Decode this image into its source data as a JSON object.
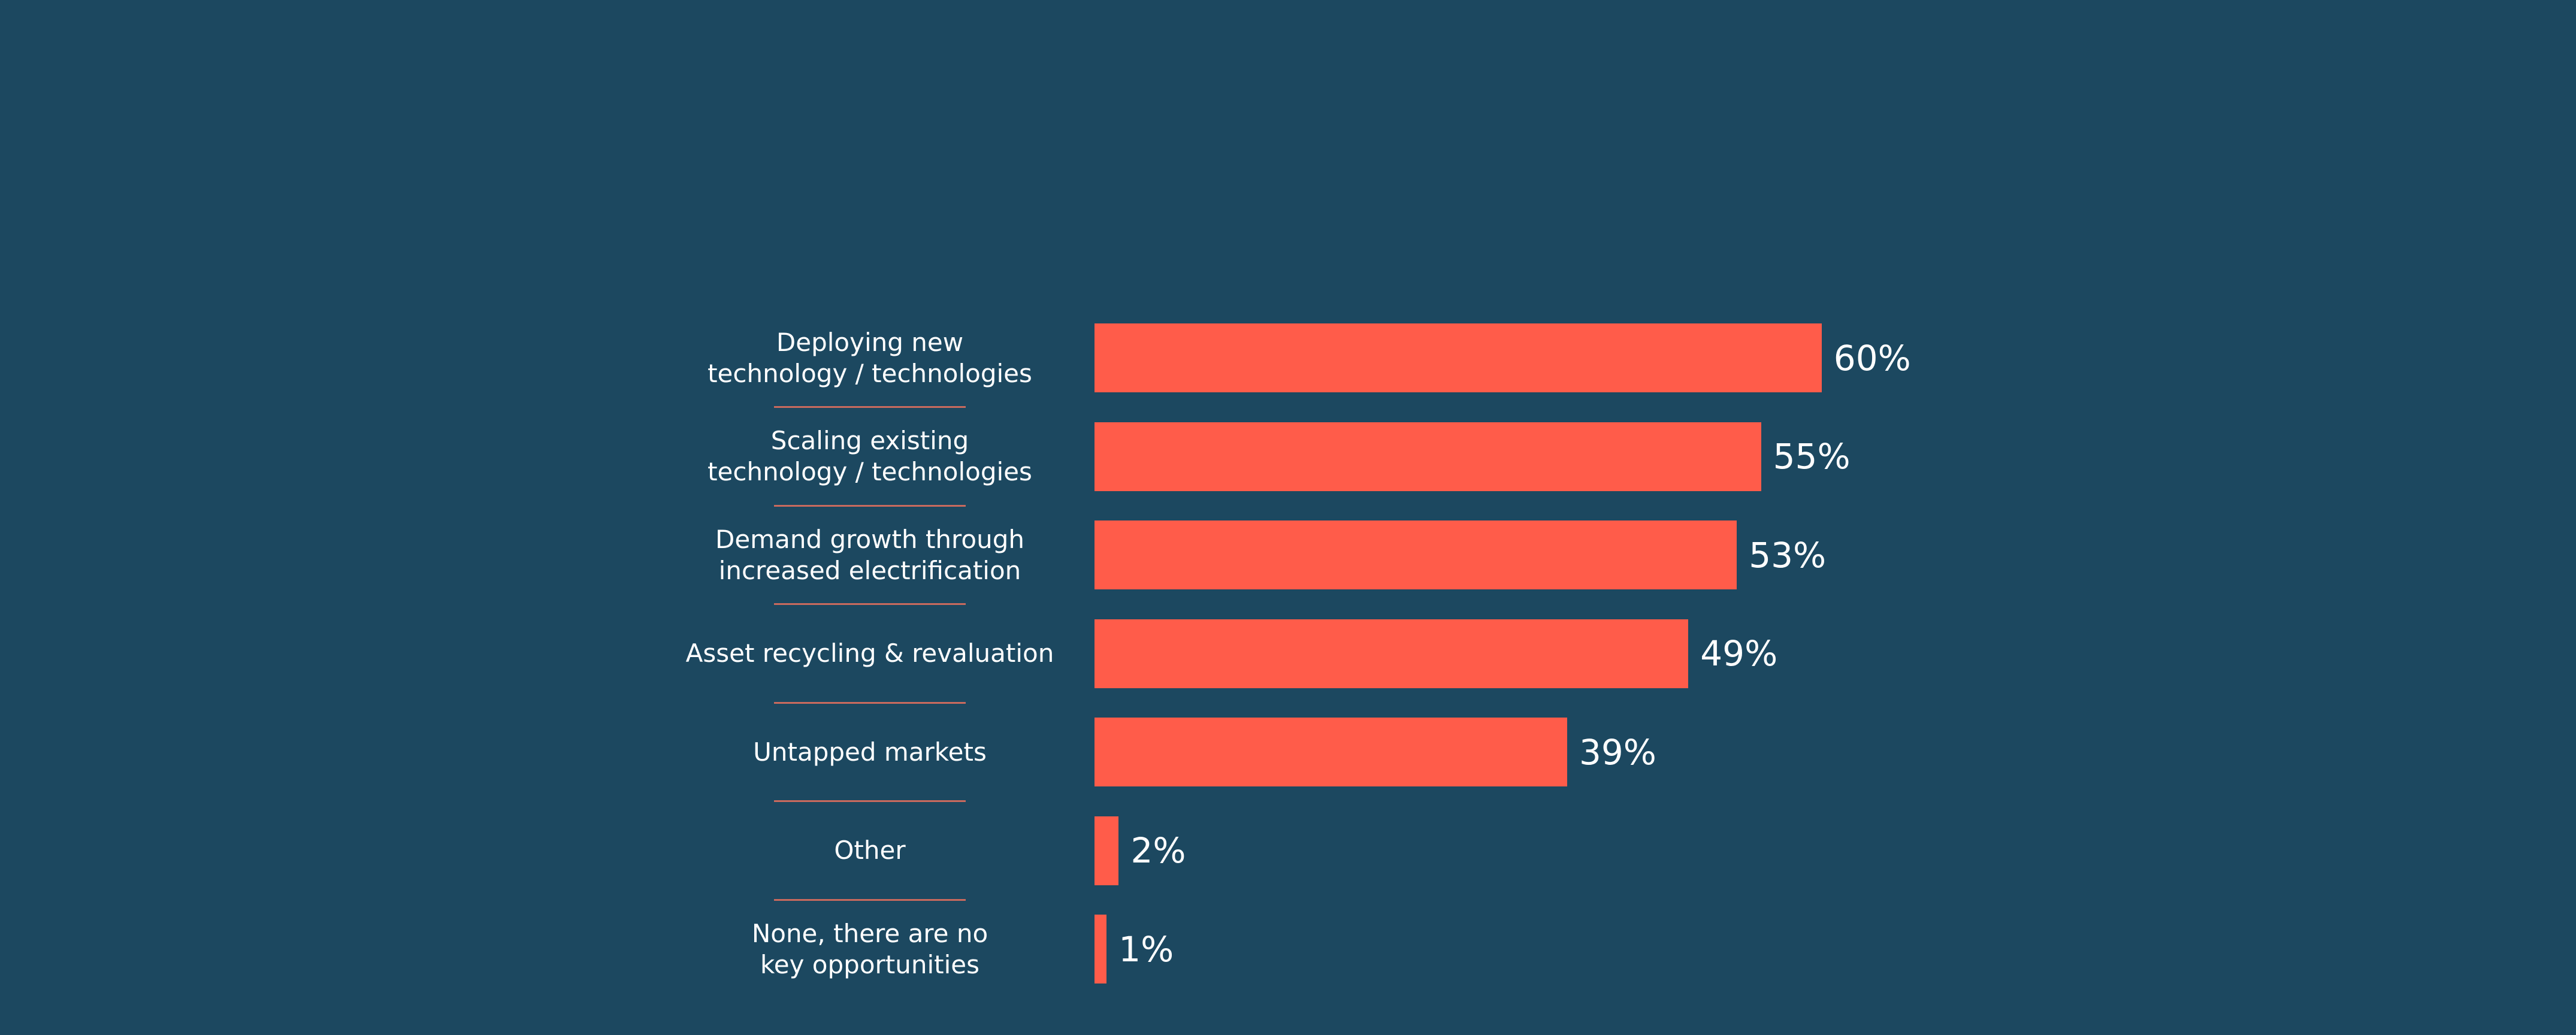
{
  "chart_data": {
    "type": "bar",
    "orientation": "horizontal",
    "categories": [
      "Deploying new\ntechnology / technologies",
      "Scaling existing\ntechnology / technologies",
      "Demand growth through\nincreased electrification",
      "Asset recycling & revaluation",
      "Untapped markets",
      "Other",
      "None, there are no\nkey opportunities"
    ],
    "values": [
      60,
      55,
      53,
      49,
      39,
      2,
      1
    ],
    "value_labels": [
      "60%",
      "55%",
      "53%",
      "49%",
      "39%",
      "2%",
      "1%"
    ],
    "title": "",
    "xlabel": "",
    "ylabel": "",
    "xlim": [
      0,
      60
    ],
    "grid": false,
    "colors": {
      "bar": "#ff5c4a",
      "background": "#1c4860",
      "text": "#ffffff"
    }
  }
}
